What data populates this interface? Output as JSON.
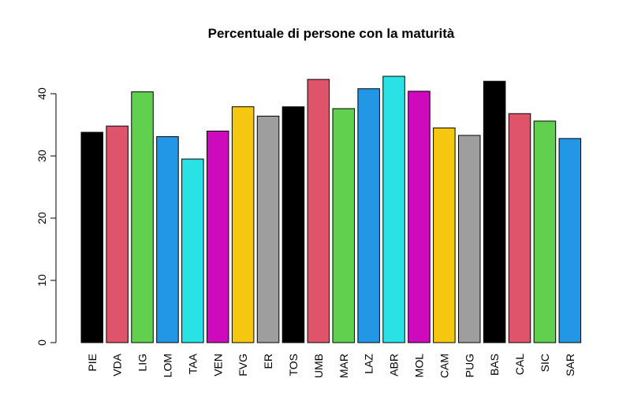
{
  "chart_data": {
    "type": "bar",
    "title": "Percentuale di persone con la maturità",
    "xlabel": "",
    "ylabel": "",
    "ylim": [
      0,
      45
    ],
    "yticks": [
      0,
      10,
      20,
      30,
      40
    ],
    "grid": false,
    "categories": [
      "PIE",
      "VDA",
      "LIG",
      "LOM",
      "TAA",
      "VEN",
      "FVG",
      "ER",
      "TOS",
      "UMB",
      "MAR",
      "LAZ",
      "ABR",
      "MOL",
      "CAM",
      "PUG",
      "BAS",
      "CAL",
      "SIC",
      "SAR"
    ],
    "values": [
      33.8,
      34.8,
      40.3,
      33.1,
      29.5,
      34.0,
      37.9,
      36.4,
      37.9,
      42.3,
      37.6,
      40.8,
      42.8,
      40.4,
      34.5,
      33.3,
      42.0,
      36.8,
      35.6,
      32.8
    ],
    "colors": [
      "#000000",
      "#DF536B",
      "#61D04F",
      "#2297E6",
      "#28E2E5",
      "#CD0BBC",
      "#F5C710",
      "#9E9E9E",
      "#000000",
      "#DF536B",
      "#61D04F",
      "#2297E6",
      "#28E2E5",
      "#CD0BBC",
      "#F5C710",
      "#9E9E9E",
      "#000000",
      "#DF536B",
      "#61D04F",
      "#2297E6"
    ]
  }
}
